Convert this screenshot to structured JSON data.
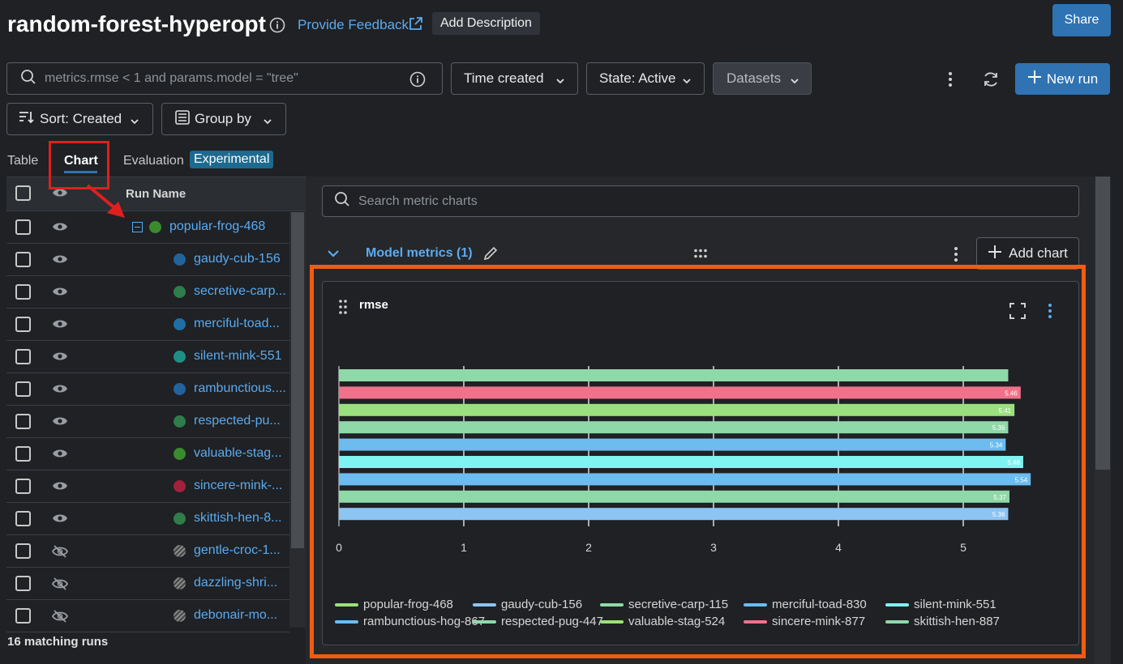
{
  "header": {
    "title": "random-forest-hyperopt",
    "feedback_label": "Provide Feedback",
    "add_description_label": "Add Description",
    "share_label": "Share"
  },
  "toolbar": {
    "search_placeholder": "metrics.rmse < 1 and params.model = \"tree\"",
    "time_created_label": "Time created",
    "state_label": "State: Active",
    "datasets_label": "Datasets",
    "new_run_label": "New run",
    "sort_label": "Sort: Created",
    "group_by_label": "Group by"
  },
  "tabs": {
    "table": "Table",
    "chart": "Chart",
    "evaluation": "Evaluation",
    "experimental": "Experimental"
  },
  "runs": {
    "header_label": "Run Name",
    "items": [
      {
        "name": "popular-frog-468",
        "color": "#3a8a2e",
        "visible": true,
        "parent": true
      },
      {
        "name": "gaudy-cub-156",
        "color": "#23639c",
        "visible": true
      },
      {
        "name": "secretive-carp...",
        "color": "#2f7d4a",
        "visible": true
      },
      {
        "name": "merciful-toad...",
        "color": "#1f6fa3",
        "visible": true
      },
      {
        "name": "silent-mink-551",
        "color": "#1f8f86",
        "visible": true
      },
      {
        "name": "rambunctious....",
        "color": "#23639c",
        "visible": true
      },
      {
        "name": "respected-pu...",
        "color": "#2f7d4a",
        "visible": true
      },
      {
        "name": "valuable-stag...",
        "color": "#3a8a2e",
        "visible": true
      },
      {
        "name": "sincere-mink-...",
        "color": "#a3213a",
        "visible": true
      },
      {
        "name": "skittish-hen-8...",
        "color": "#2f7d4a",
        "visible": true
      },
      {
        "name": "gentle-croc-1...",
        "color": "#777777",
        "visible": false
      },
      {
        "name": "dazzling-shri...",
        "color": "#777777",
        "visible": false
      },
      {
        "name": "debonair-mo...",
        "color": "#777777",
        "visible": false
      }
    ],
    "matching_label": "16 matching runs"
  },
  "charts": {
    "search_placeholder": "Search metric charts",
    "section_title": "Model metrics (1)",
    "add_chart_label": "Add chart"
  },
  "colors": {
    "accent": "#2f73b3",
    "link": "#5aabf0",
    "highlight_orange": "#f25c0f",
    "highlight_red": "#e01f1f"
  },
  "chart_data": {
    "type": "bar",
    "orientation": "horizontal",
    "title": "rmse",
    "xlim": [
      0,
      5.6
    ],
    "xticks": [
      "0",
      "1",
      "2",
      "3",
      "4",
      "5"
    ],
    "bars": [
      {
        "value": 5.36,
        "label": "",
        "color": "#8fd9a8"
      },
      {
        "value": 5.46,
        "label": "5.46",
        "color": "#f0728a"
      },
      {
        "value": 5.41,
        "label": "5.41",
        "color": "#9be07e"
      },
      {
        "value": 5.36,
        "label": "5.36",
        "color": "#8fd9a8"
      },
      {
        "value": 5.34,
        "label": "5.34",
        "color": "#6cbcef"
      },
      {
        "value": 5.48,
        "label": "5.48",
        "color": "#7ff2f2"
      },
      {
        "value": 5.54,
        "label": "5.54",
        "color": "#6cbcef"
      },
      {
        "value": 5.37,
        "label": "5.37",
        "color": "#8fd9a8"
      },
      {
        "value": 5.36,
        "label": "5.36",
        "color": "#8cc4f2"
      }
    ],
    "legend": [
      {
        "name": "popular-frog-468",
        "color": "#9be07e"
      },
      {
        "name": "gaudy-cub-156",
        "color": "#8cc4f2"
      },
      {
        "name": "secretive-carp-115",
        "color": "#8fd9a8"
      },
      {
        "name": "merciful-toad-830",
        "color": "#6cbcef"
      },
      {
        "name": "silent-mink-551",
        "color": "#7ff2f2"
      },
      {
        "name": "rambunctious-hog-867",
        "color": "#6cbcef"
      },
      {
        "name": "respected-pug-447",
        "color": "#8fd9a8"
      },
      {
        "name": "valuable-stag-524",
        "color": "#9be07e"
      },
      {
        "name": "sincere-mink-877",
        "color": "#f0728a"
      },
      {
        "name": "skittish-hen-887",
        "color": "#8fd9a8"
      }
    ],
    "legend_placement": "bottom",
    "grid": true
  }
}
